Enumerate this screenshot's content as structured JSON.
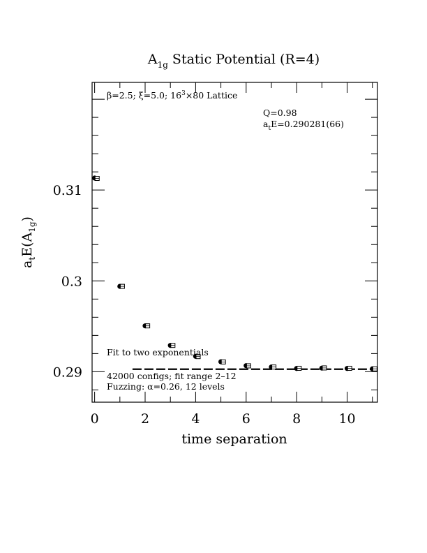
{
  "chart_data": {
    "type": "scatter",
    "title": {
      "main": "A",
      "sub": "1g",
      "rest": " Static Potential (R=4)"
    },
    "xlabel": "time separation",
    "ylabel": {
      "a": "a",
      "a_sub": "t",
      "mid": "E(A",
      "sub": "1g",
      "end": ")"
    },
    "xlim": [
      -0.1,
      11.2
    ],
    "ylim": [
      0.28665,
      0.32185
    ],
    "x_ticks": [
      0,
      2,
      4,
      6,
      8,
      10
    ],
    "x_tick_labels": [
      "0",
      "2",
      "4",
      "6",
      "8",
      "10"
    ],
    "y_ticks": [
      0.29,
      0.3,
      0.31
    ],
    "y_tick_labels": [
      "0.29",
      "0.3",
      "0.31"
    ],
    "grid": false,
    "series": [
      {
        "marker": "filled-circle",
        "x": [
          0,
          1,
          2,
          3,
          4,
          5,
          6,
          7,
          8,
          9,
          10,
          11
        ],
        "y": [
          0.31132,
          0.2994,
          0.29505,
          0.2929,
          0.2917,
          0.2911,
          0.29067,
          0.29052,
          0.29036,
          0.2904,
          0.29036,
          0.29032
        ]
      },
      {
        "marker": "open-square",
        "x": [
          0.1,
          1.1,
          2.1,
          3.1,
          4.1,
          5.1,
          6.1,
          7.1,
          8.1,
          9.1,
          10.1,
          11.1
        ],
        "y": [
          0.31128,
          0.2994,
          0.29505,
          0.2929,
          0.29167,
          0.29108,
          0.29065,
          0.29052,
          0.29038,
          0.29042,
          0.29038,
          0.29032
        ]
      }
    ],
    "fit": {
      "value": 0.290281,
      "x_start": 1.5,
      "x_end": 11.2,
      "style": "dashed"
    },
    "annotations": {
      "lattice": {
        "beta": "β=2.5; ξ=5.0; 16",
        "sup": "3",
        "rest": "×80 Lattice"
      },
      "q": "Q=0.98",
      "energy": {
        "a": "a",
        "sub": "t",
        "rest": "E=0.290281(66)"
      },
      "fit_label": "Fit to two exponentials",
      "configs": "42000 configs; fit range 2–12",
      "fuzzing": "Fuzzing: α=0.26, 12 levels"
    }
  }
}
